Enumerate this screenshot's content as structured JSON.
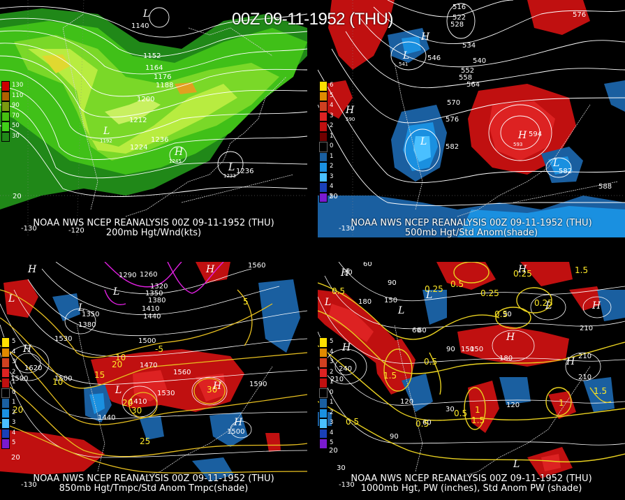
{
  "main_title": "00Z 09-11-1952 (THU)",
  "panels": [
    {
      "caption_line1": "NOAA NWS NCEP REANALYSIS 00Z 09-11-1952 (THU)",
      "caption_line2": "200mb Hgt/Wnd(kts)",
      "legend": [
        "130",
        "110",
        "90",
        "70",
        "50",
        "30"
      ],
      "legend_colors": [
        "#cc0000",
        "#b06000",
        "#7a9a10",
        "#46c010",
        "#40d018",
        "#208818"
      ],
      "contour_labels": [
        "1140",
        "1152",
        "1164",
        "1176",
        "1188",
        "1200",
        "1212",
        "1224",
        "1236",
        "1236",
        "1192",
        "1245",
        "1233"
      ],
      "axis_labels": [
        "-130",
        "-120",
        "20"
      ],
      "highs_lows": [
        "L",
        "L",
        "H",
        "L"
      ]
    },
    {
      "caption_line1": "NOAA NWS NCEP REANALYSIS 00Z 09-11-1952 (THU)",
      "caption_line2": "500mb Hgt/Std Anom(shade)",
      "legend": [
        "6",
        "5",
        "4",
        "3",
        "2",
        "1",
        "0",
        "1",
        "2",
        "3",
        "4",
        "5"
      ],
      "legend_colors": [
        "#ffe000",
        "#e08a00",
        "#d04020",
        "#dd2222",
        "#c01010",
        "#700000",
        "#000000",
        "#1a5fa0",
        "#1a90e0",
        "#4ac0ff",
        "#1a40b8",
        "#7a1ad0"
      ],
      "contour_labels": [
        "516",
        "522",
        "528",
        "534",
        "540",
        "546",
        "552",
        "558",
        "564",
        "570",
        "576",
        "582",
        "588",
        "594",
        "576",
        "564",
        "582",
        "590",
        "541",
        "593",
        "546"
      ],
      "axis_labels": [
        "-130",
        "20"
      ],
      "highs_lows": [
        "H",
        "L",
        "H",
        "L",
        "H",
        "L"
      ]
    },
    {
      "caption_line1": "NOAA NWS NCEP REANALYSIS 00Z 09-11-1952 (THU)",
      "caption_line2": "850mb Hgt/Tmpc/Std Anom Tmpc(shade)",
      "legend": [
        "5",
        "4",
        "3",
        "2",
        "1",
        "0",
        "1",
        "2",
        "3",
        "4",
        "5"
      ],
      "legend_colors": [
        "#ffe000",
        "#e08a00",
        "#d04020",
        "#dd2222",
        "#c01010",
        "#000000",
        "#1a5fa0",
        "#1a90e0",
        "#4ac0ff",
        "#1a40b8",
        "#7a1ad0"
      ],
      "contour_labels": [
        "1560",
        "1290",
        "1260",
        "1320",
        "1350",
        "1380",
        "1410",
        "1440",
        "1350",
        "1380",
        "1530",
        "1500",
        "1620",
        "1590",
        "1500",
        "1470",
        "1440",
        "1560",
        "1530",
        "1590",
        "1500",
        "1410",
        "1560"
      ],
      "yellow_labels": [
        "-5",
        "5",
        "10",
        "15",
        "20",
        "25",
        "20",
        "10",
        "30",
        "20",
        "30",
        "25"
      ],
      "axis_labels": [
        "-130",
        "20"
      ],
      "highs_lows": [
        "H",
        "L",
        "L",
        "L",
        "H",
        "L",
        "H",
        "H",
        "H"
      ]
    },
    {
      "caption_line1": "NOAA NWS NCEP REANALYSIS 00Z 09-11-1952 (THU)",
      "caption_line2": "1000mb Hgt, PW (inches), Std Anom PW (shade)",
      "legend": [
        "5",
        "4",
        "3",
        "2",
        "1",
        "0",
        "1",
        "2",
        "3",
        "4",
        "5"
      ],
      "legend_colors": [
        "#ffe000",
        "#e08a00",
        "#d04020",
        "#dd2222",
        "#c01010",
        "#000000",
        "#1a5fa0",
        "#1a90e0",
        "#4ac0ff",
        "#1a40b8",
        "#7a1ad0"
      ],
      "contour_labels": [
        "60",
        "30",
        "180",
        "150",
        "120",
        "90",
        "60",
        "240",
        "210",
        "210",
        "180",
        "150",
        "120",
        "90",
        "60",
        "30",
        "150",
        "90",
        "210",
        "180",
        "210",
        "120",
        "60",
        "30",
        "90"
      ],
      "yellow_labels": [
        "0.25",
        "0.5",
        "0.25",
        "0.25",
        "0.25",
        "0.5",
        "1.5",
        "0.5",
        "1",
        "1.5",
        "1",
        "0.5",
        "0.5",
        "1.5",
        "1.5",
        "0.5",
        "0.5"
      ],
      "axis_labels": [
        "-130",
        "20"
      ],
      "highs_lows": [
        "H",
        "L",
        "L",
        "H",
        "L",
        "H",
        "L",
        "H",
        "H",
        "H",
        "L"
      ]
    }
  ]
}
